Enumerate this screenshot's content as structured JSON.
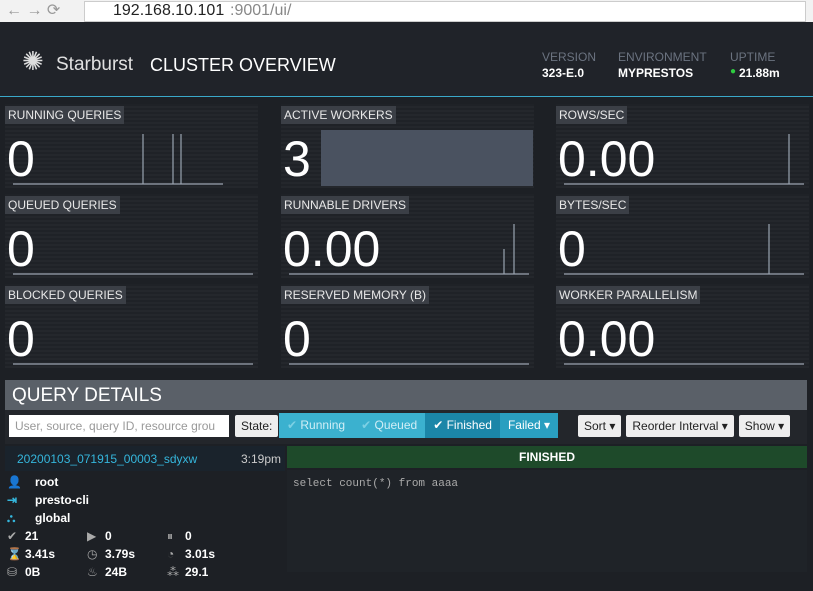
{
  "browser": {
    "url_host": "192.168.10.101",
    "url_rest": ":9001/ui/"
  },
  "header": {
    "brand": "Starburst",
    "title": "CLUSTER OVERVIEW",
    "version_label": "VERSION",
    "version": "323-E.0",
    "environment_label": "ENVIRONMENT",
    "environment": "MYPRESTOS",
    "uptime_label": "UPTIME",
    "uptime": "21.88m"
  },
  "metrics": [
    {
      "label": "RUNNING QUERIES",
      "value": "0"
    },
    {
      "label": "ACTIVE WORKERS",
      "value": "3"
    },
    {
      "label": "ROWS/SEC",
      "value": "0.00"
    },
    {
      "label": "QUEUED QUERIES",
      "value": "0"
    },
    {
      "label": "RUNNABLE DRIVERS",
      "value": "0.00"
    },
    {
      "label": "BYTES/SEC",
      "value": "0"
    },
    {
      "label": "BLOCKED QUERIES",
      "value": "0"
    },
    {
      "label": "RESERVED MEMORY (B)",
      "value": "0"
    },
    {
      "label": "WORKER PARALLELISM",
      "value": "0.00"
    }
  ],
  "query_details": {
    "title": "QUERY DETAILS",
    "search_placeholder": "User, source, query ID, resource grou",
    "state_label": "State:",
    "filters": [
      "Running",
      "Queued",
      "Finished",
      "Failed"
    ],
    "buttons": [
      "Sort",
      "Reorder Interval",
      "Show"
    ]
  },
  "query": {
    "id": "20200103_071915_00003_sdyxw",
    "time": "3:19pm",
    "state": "FINISHED",
    "sql": "select count(*) from aaaa",
    "user": "root",
    "source": "presto-cli",
    "resource_group": "global",
    "stats": [
      "21",
      "0",
      "0",
      "3.41s",
      "3.79s",
      "3.01s",
      "0B",
      "24B",
      "29.1"
    ]
  }
}
